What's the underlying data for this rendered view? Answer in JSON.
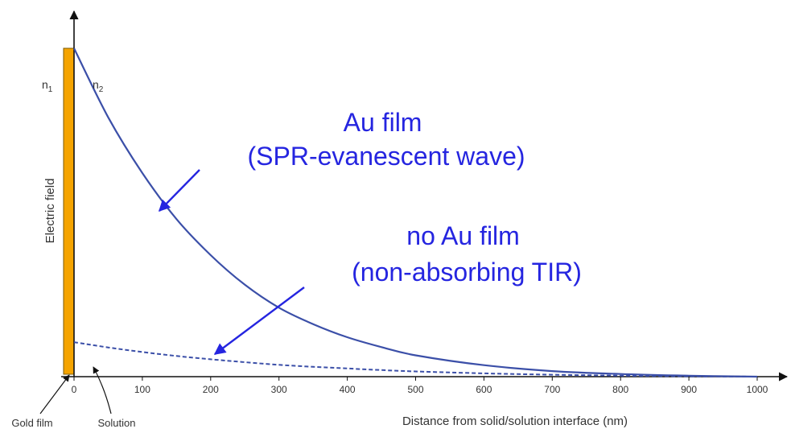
{
  "chart_data": {
    "type": "line",
    "xlabel": "Distance from solid/solution interface (nm)",
    "ylabel": "Electric field",
    "xlim": [
      0,
      1030
    ],
    "ylim": [
      0,
      1.0
    ],
    "x_ticks": [
      0,
      100,
      200,
      300,
      400,
      500,
      600,
      700,
      800,
      900,
      1000
    ],
    "y_ticks": [],
    "grid": false,
    "legend": "none",
    "series": [
      {
        "x": [
          0,
          50,
          100,
          150,
          200,
          250,
          300,
          350,
          400,
          450,
          500,
          600,
          700,
          800,
          900,
          1000
        ],
        "y": [
          1.0,
          0.79,
          0.62,
          0.48,
          0.37,
          0.28,
          0.21,
          0.16,
          0.12,
          0.09,
          0.065,
          0.035,
          0.017,
          0.008,
          0.003,
          0.0
        ],
        "style": "solid",
        "color": "#3b4fa8"
      },
      {
        "x": [
          0,
          50,
          100,
          150,
          200,
          250,
          300,
          350,
          400,
          450,
          500,
          600,
          700,
          800,
          900,
          1000
        ],
        "y": [
          0.105,
          0.089,
          0.075,
          0.063,
          0.053,
          0.044,
          0.036,
          0.03,
          0.025,
          0.02,
          0.016,
          0.01,
          0.006,
          0.003,
          0.001,
          0.0
        ],
        "style": "dashed",
        "color": "#3b4fa8"
      }
    ],
    "regions": {
      "gold_film_color": "#f5a400",
      "labels": {
        "gold_film": "Gold film",
        "solution": "Solution",
        "n1_main": "n",
        "n1_sub": "1",
        "n2_main": "n",
        "n2_sub": "2"
      }
    },
    "annotations": [
      {
        "lines": [
          "Au film",
          "(SPR-evanescent wave)"
        ],
        "color": "#2525e0",
        "points_to_series": 0,
        "at_x": 125
      },
      {
        "lines": [
          "no Au film",
          "(non-absorbing TIR)"
        ],
        "color": "#2525e0",
        "points_to_series": 1,
        "at_x": 210
      }
    ]
  }
}
